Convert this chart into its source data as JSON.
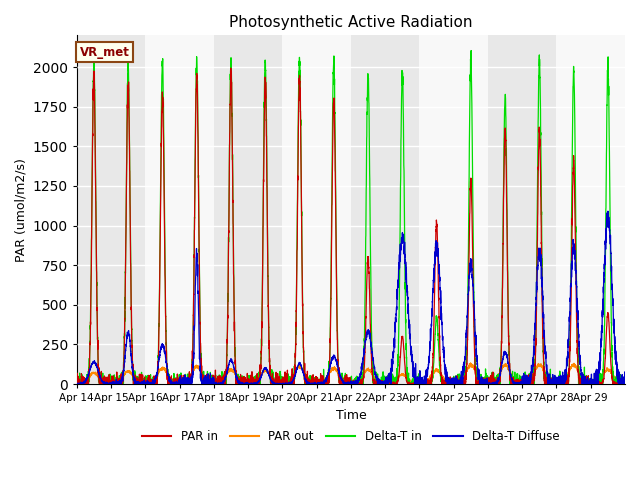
{
  "title": "Photosynthetic Active Radiation",
  "ylabel": "PAR (umol/m2/s)",
  "xlabel": "Time",
  "ylim": [
    0,
    2200
  ],
  "annotation_text": "VR_met",
  "annotation_bgcolor": "#ffffee",
  "annotation_edgecolor": "#8B4513",
  "annotation_textcolor": "#8B0000",
  "bg_colors": [
    "#e8e8e8",
    "#f8f8f8"
  ],
  "line_colors": {
    "PAR in": "#cc0000",
    "PAR out": "#ff8800",
    "Delta-T in": "#00dd00",
    "Delta-T Diffuse": "#0000cc"
  },
  "x_tick_labels": [
    "Apr 14",
    "Apr 15",
    "Apr 16",
    "Apr 17",
    "Apr 18",
    "Apr 19",
    "Apr 20",
    "Apr 21",
    "Apr 22",
    "Apr 23",
    "Apr 24",
    "Apr 25",
    "Apr 26",
    "Apr 27",
    "Apr 28",
    "Apr 29"
  ],
  "num_days": 16,
  "ppd": 288
}
